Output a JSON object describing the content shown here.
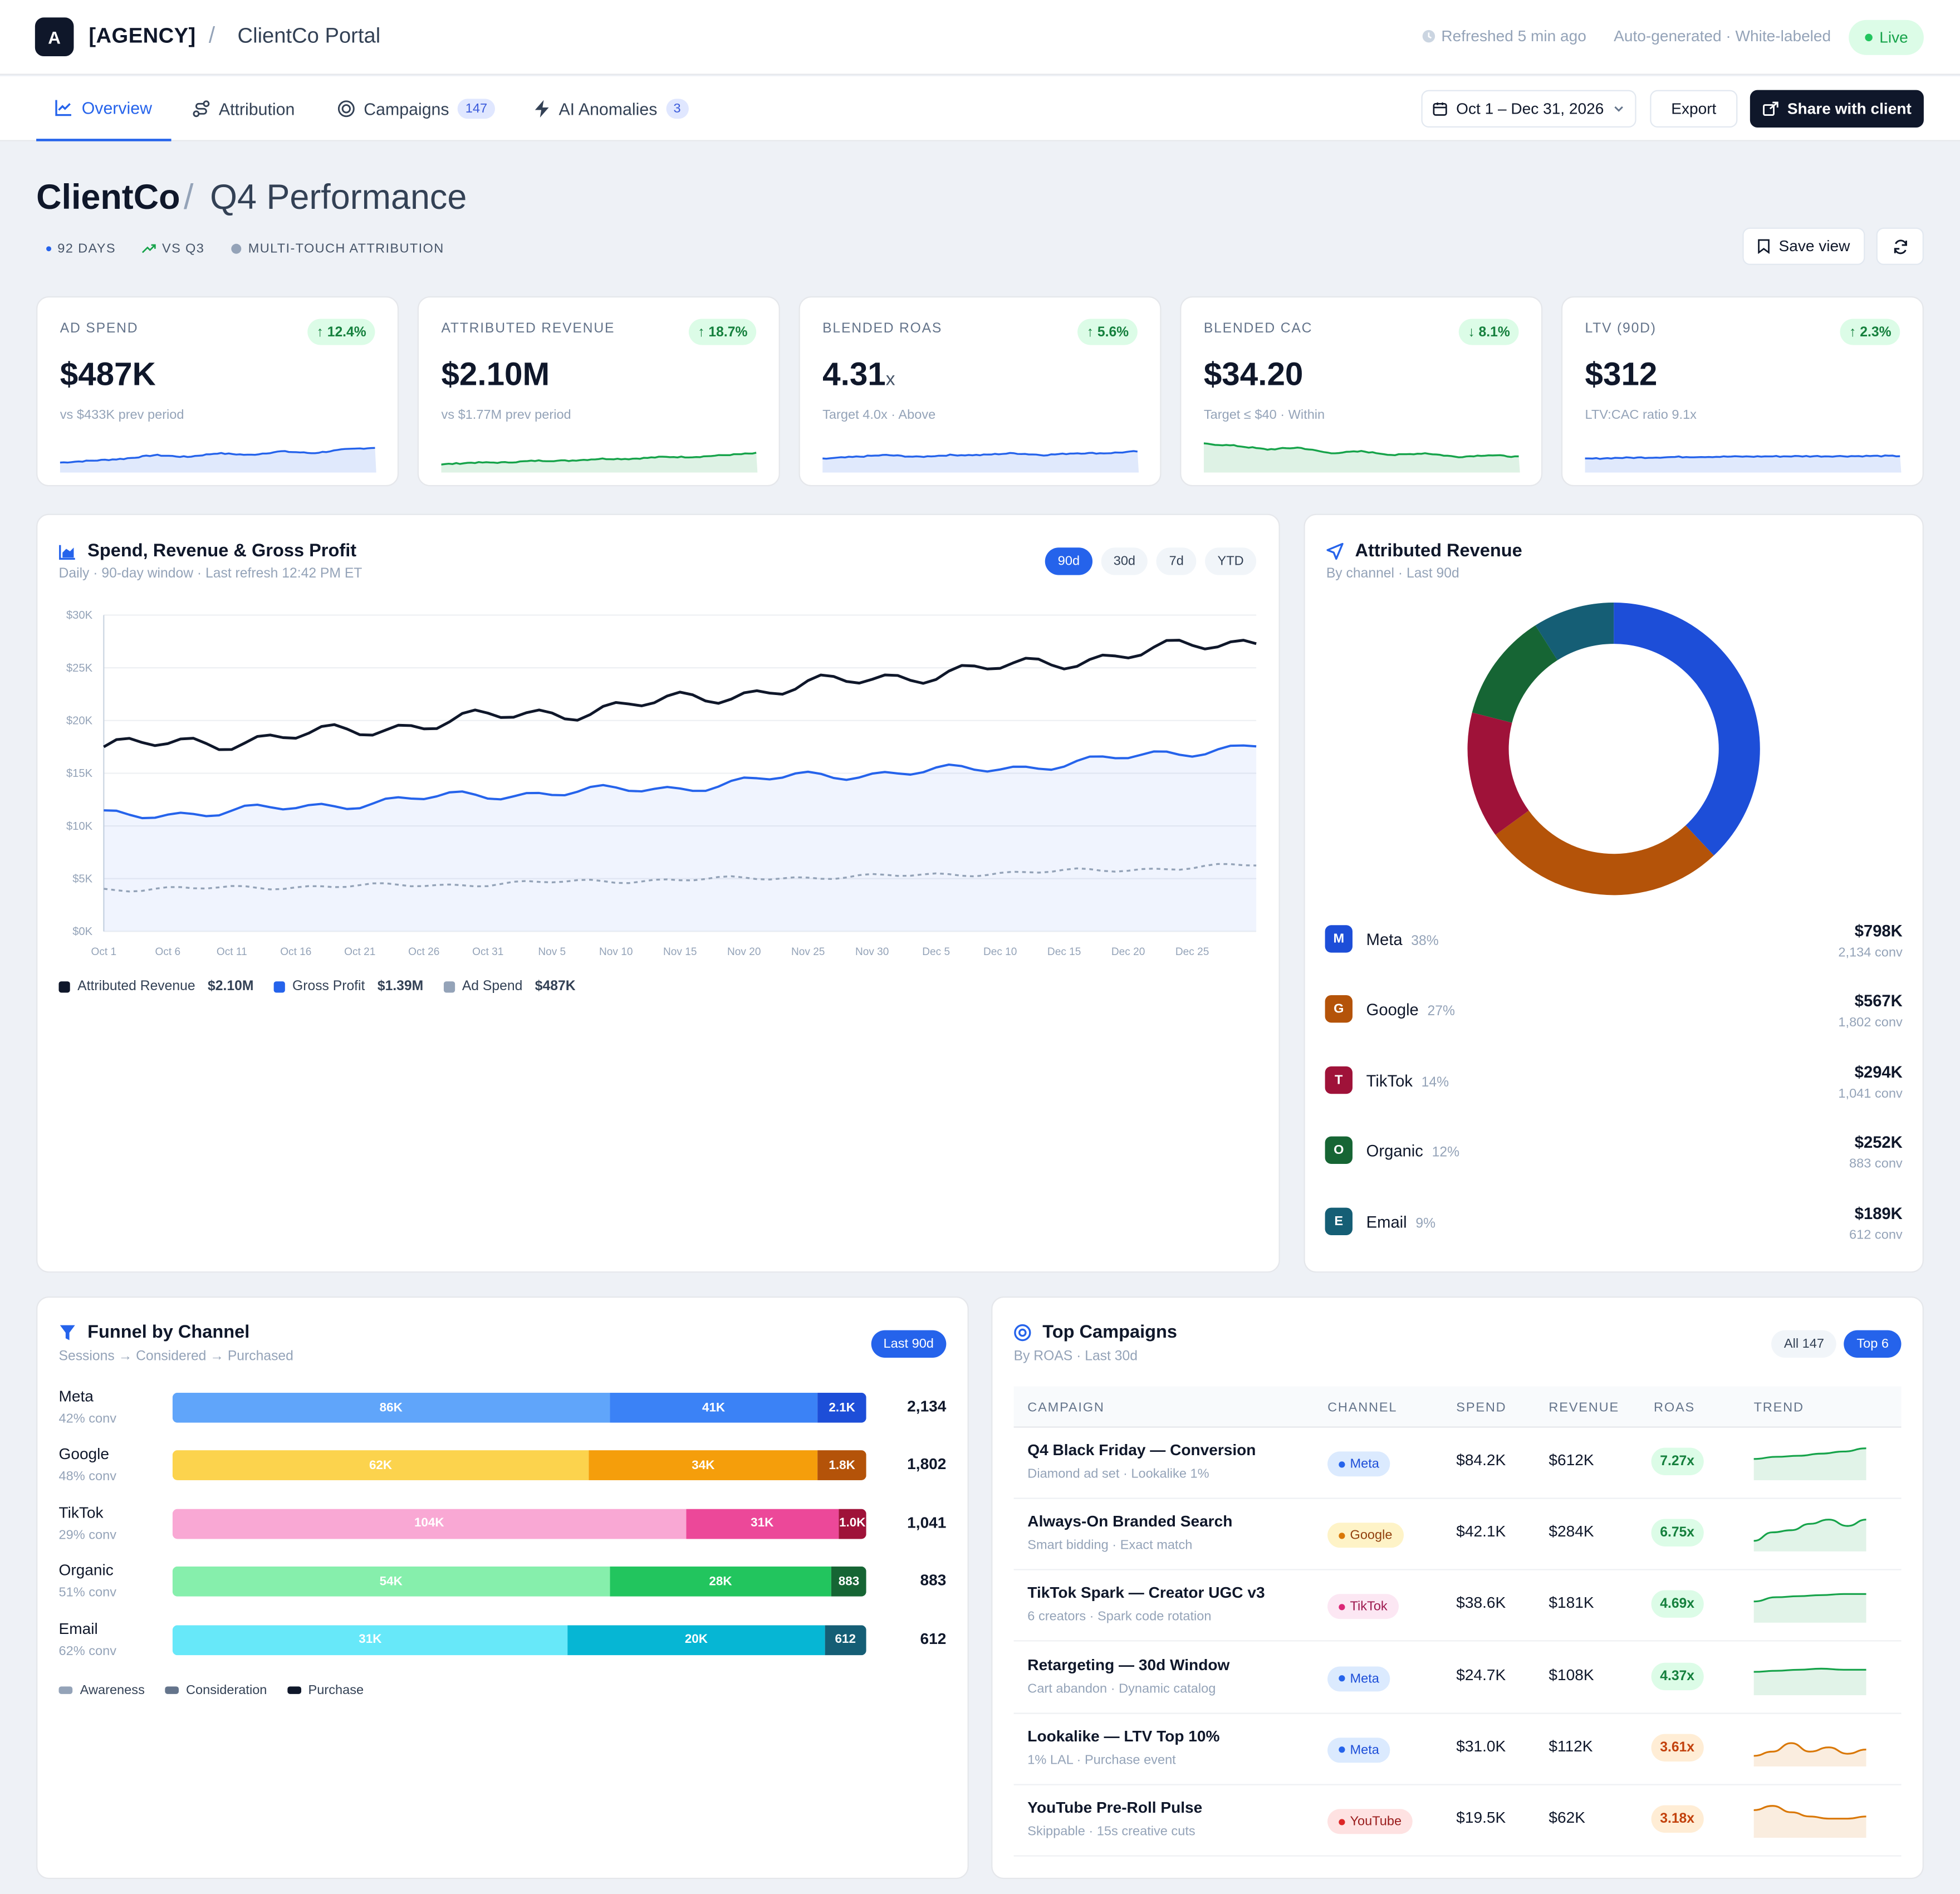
{
  "app": {
    "logo_letter": "A",
    "agency": "[AGENCY]",
    "portal": "ClientCo Portal",
    "refreshed": "Refreshed 5 min ago",
    "autogen": "Auto-generated · White-labeled",
    "live": "Live"
  },
  "tabs": [
    {
      "label": "Overview",
      "icon": "line-chart-icon",
      "active": true
    },
    {
      "label": "Attribution",
      "icon": "path-icon"
    },
    {
      "label": "Campaigns",
      "icon": "target-icon",
      "badge": "147"
    },
    {
      "label": "AI Anomalies",
      "icon": "bolt-icon",
      "badge": "3"
    }
  ],
  "toolbar": {
    "date_range": "Oct 1 – Dec 31, 2026",
    "export": "Export",
    "share": "Share with client"
  },
  "heading": {
    "client": "ClientCo",
    "title": "Q4 Performance",
    "meta": [
      "92 DAYS",
      "VS Q3",
      "MULTI-TOUCH ATTRIBUTION"
    ],
    "save_view": "Save view"
  },
  "kpis": [
    {
      "label": "AD SPEND",
      "delta": "12.4%",
      "dir": "up",
      "value": "$487K",
      "unit": "",
      "sub": "vs $433K prev period",
      "color": "#2563eb"
    },
    {
      "label": "ATTRIBUTED REVENUE",
      "delta": "18.7%",
      "dir": "up",
      "value": "$2.10M",
      "unit": "",
      "sub": "vs $1.77M prev period",
      "color": "#16a34a"
    },
    {
      "label": "BLENDED ROAS",
      "delta": "5.6%",
      "dir": "up",
      "value": "4.31",
      "unit": "x",
      "sub": "Target 4.0x · Above",
      "color": "#2563eb"
    },
    {
      "label": "BLENDED CAC",
      "delta": "8.1%",
      "dir": "down",
      "value": "$34.20",
      "unit": "",
      "sub": "Target ≤ $40 · Within",
      "color": "#16a34a"
    },
    {
      "label": "LTV (90D)",
      "delta": "2.3%",
      "dir": "up",
      "value": "$312",
      "unit": "",
      "sub": "LTV:CAC ratio 9.1x",
      "color": "#2563eb"
    }
  ],
  "main_chart": {
    "title": "Spend, Revenue & Gross Profit",
    "subtitle": "Daily · 90-day window · Last refresh 12:42 PM ET",
    "ranges": [
      "90d",
      "30d",
      "7d",
      "YTD"
    ],
    "active_range": "90d",
    "legend": [
      {
        "name": "Attributed Revenue",
        "total": "$2.10M",
        "color": "#0f172a"
      },
      {
        "name": "Gross Profit",
        "total": "$1.39M",
        "color": "#2563eb"
      },
      {
        "name": "Ad Spend",
        "total": "$487K",
        "color": "#94a3b8"
      }
    ]
  },
  "chart_data": {
    "type": "line",
    "x_ticks": [
      "Oct 1",
      "Oct 6",
      "Oct 11",
      "Oct 16",
      "Oct 21",
      "Oct 26",
      "Oct 31",
      "Nov 5",
      "Nov 10",
      "Nov 15",
      "Nov 20",
      "Nov 25",
      "Nov 30",
      "Dec 5",
      "Dec 10",
      "Dec 15",
      "Dec 20",
      "Dec 25"
    ],
    "y_ticks": [
      "$0K",
      "$5K",
      "$10K",
      "$15K",
      "$20K",
      "$25K",
      "$30K"
    ],
    "ylim": [
      0,
      30000
    ],
    "x_days": [
      0,
      9,
      18,
      27,
      36,
      45,
      54,
      63,
      72,
      81,
      90
    ],
    "series": [
      {
        "name": "Attributed Revenue",
        "values": [
          17500,
          18000,
          18800,
          20000,
          20800,
          21900,
          23200,
          24300,
          25200,
          26500,
          27600
        ]
      },
      {
        "name": "Gross Profit",
        "values": [
          11000,
          11300,
          12000,
          12800,
          13200,
          13600,
          14700,
          15100,
          15600,
          16600,
          17700
        ]
      },
      {
        "name": "Ad Spend",
        "values": [
          4000,
          4100,
          4300,
          4400,
          4700,
          4900,
          5100,
          5300,
          5600,
          5900,
          6300
        ]
      }
    ]
  },
  "donut": {
    "title": "Attributed Revenue",
    "subtitle": "By channel · Last 90d",
    "channels": [
      {
        "letter": "M",
        "name": "Meta",
        "pct": "38%",
        "share": 38,
        "value": "$798K",
        "conv": "2,134 conv",
        "color": "#1d4ed8"
      },
      {
        "letter": "G",
        "name": "Google",
        "pct": "27%",
        "share": 27,
        "value": "$567K",
        "conv": "1,802 conv",
        "color": "#b45309"
      },
      {
        "letter": "T",
        "name": "TikTok",
        "pct": "14%",
        "share": 14,
        "value": "$294K",
        "conv": "1,041 conv",
        "color": "#9f1239"
      },
      {
        "letter": "O",
        "name": "Organic",
        "pct": "12%",
        "share": 12,
        "value": "$252K",
        "conv": "883 conv",
        "color": "#166534"
      },
      {
        "letter": "E",
        "name": "Email",
        "pct": "9%",
        "share": 9,
        "value": "$189K",
        "conv": "612 conv",
        "color": "#155e75"
      }
    ]
  },
  "funnel": {
    "title": "Funnel by Channel",
    "subtitle": "Sessions → Considered → Purchased",
    "badge": "Last 90d",
    "rows": [
      {
        "name": "Meta",
        "conv": "42% conv",
        "a": "86K",
        "c": "41K",
        "p": "2.1K",
        "total": "2,134",
        "wa": 63,
        "wc": 30,
        "colors": [
          "#60a5fa",
          "#3b82f6",
          "#1d4ed8"
        ]
      },
      {
        "name": "Google",
        "conv": "48% conv",
        "a": "62K",
        "c": "34K",
        "p": "1.8K",
        "total": "1,802",
        "wa": 60,
        "wc": 33,
        "colors": [
          "#fcd34d",
          "#f59e0b",
          "#b45309"
        ]
      },
      {
        "name": "TikTok",
        "conv": "29% conv",
        "a": "104K",
        "c": "31K",
        "p": "1.0K",
        "total": "1,041",
        "wa": 74,
        "wc": 22,
        "colors": [
          "#f9a8d4",
          "#ec4899",
          "#9f1239"
        ]
      },
      {
        "name": "Organic",
        "conv": "51% conv",
        "a": "54K",
        "c": "28K",
        "p": "883",
        "total": "883",
        "wa": 63,
        "wc": 32,
        "colors": [
          "#86efac",
          "#22c55e",
          "#166534"
        ]
      },
      {
        "name": "Email",
        "conv": "62% conv",
        "a": "31K",
        "c": "20K",
        "p": "612",
        "total": "612",
        "wa": 57,
        "wc": 37,
        "colors": [
          "#67e8f9",
          "#06b6d4",
          "#155e75"
        ]
      }
    ],
    "legend": [
      "Awareness",
      "Consideration",
      "Purchase"
    ]
  },
  "campaigns": {
    "title": "Top Campaigns",
    "subtitle": "By ROAS · Last 30d",
    "filter_all": "All 147",
    "filter_top": "Top 6",
    "headers": [
      "CAMPAIGN",
      "CHANNEL",
      "SPEND",
      "REVENUE",
      "ROAS",
      "TREND"
    ],
    "rows": [
      {
        "name": "Q4 Black Friday — Conversion",
        "desc": "Diamond ad set · Lookalike 1%",
        "channel": "Meta",
        "spend": "$84.2K",
        "revenue": "$612K",
        "roas": "7.27x",
        "good": true,
        "trend": [
          20,
          22,
          23,
          25,
          27,
          30
        ]
      },
      {
        "name": "Always-On Branded Search",
        "desc": "Smart bidding · Exact match",
        "channel": "Google",
        "spend": "$42.1K",
        "revenue": "$284K",
        "roas": "6.75x",
        "good": true,
        "trend": [
          10,
          18,
          20,
          26,
          30,
          24,
          30
        ]
      },
      {
        "name": "TikTok Spark — Creator UGC v3",
        "desc": "6 creators · Spark code rotation",
        "channel": "TikTok",
        "spend": "$38.6K",
        "revenue": "$181K",
        "roas": "4.69x",
        "good": true,
        "trend": [
          20,
          24,
          25,
          26,
          27,
          27
        ]
      },
      {
        "name": "Retargeting — 30d Window",
        "desc": "Cart abandon · Dynamic catalog",
        "channel": "Meta",
        "spend": "$24.7K",
        "revenue": "$108K",
        "roas": "4.37x",
        "good": true,
        "trend": [
          22,
          23,
          24,
          25,
          24,
          24
        ]
      },
      {
        "name": "Lookalike — LTV Top 10%",
        "desc": "1% LAL · Purchase event",
        "channel": "Meta",
        "spend": "$31.0K",
        "revenue": "$112K",
        "roas": "3.61x",
        "good": false,
        "trend": [
          10,
          14,
          22,
          14,
          18,
          12,
          16
        ]
      },
      {
        "name": "YouTube Pre-Roll Pulse",
        "desc": "Skippable · 15s creative cuts",
        "channel": "YouTube",
        "spend": "$19.5K",
        "revenue": "$62K",
        "roas": "3.18x",
        "good": false,
        "trend": [
          26,
          30,
          24,
          20,
          18,
          18,
          20
        ]
      }
    ]
  },
  "colors": {
    "accent": "#2563eb",
    "dark": "#0f172a",
    "green": "#16a34a",
    "orange": "#d97706"
  }
}
